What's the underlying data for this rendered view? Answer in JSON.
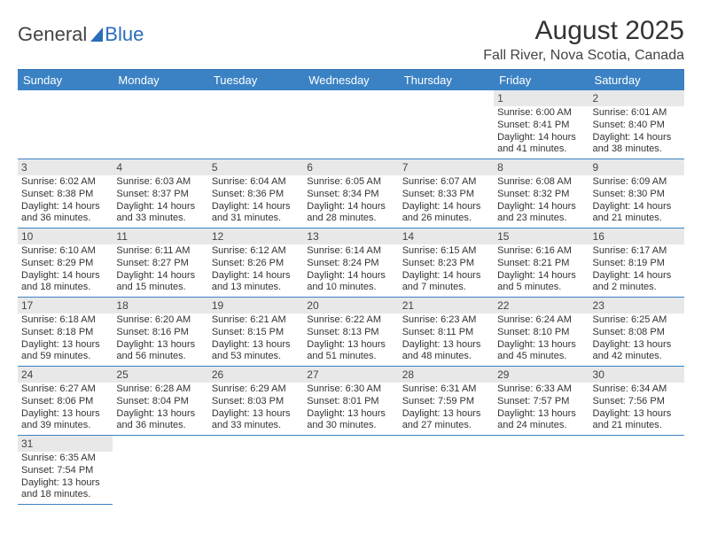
{
  "brand": {
    "general": "General",
    "blue": "Blue"
  },
  "title": "August 2025",
  "location": "Fall River, Nova Scotia, Canada",
  "header_bg": "#3b82c4",
  "header_fg": "#ffffff",
  "daynum_bg": "#e8e8e8",
  "border_color": "#3b82c4",
  "day_headers": [
    "Sunday",
    "Monday",
    "Tuesday",
    "Wednesday",
    "Thursday",
    "Friday",
    "Saturday"
  ],
  "weeks": [
    [
      null,
      null,
      null,
      null,
      null,
      {
        "n": "1",
        "sunrise": "Sunrise: 6:00 AM",
        "sunset": "Sunset: 8:41 PM",
        "d1": "Daylight: 14 hours",
        "d2": "and 41 minutes."
      },
      {
        "n": "2",
        "sunrise": "Sunrise: 6:01 AM",
        "sunset": "Sunset: 8:40 PM",
        "d1": "Daylight: 14 hours",
        "d2": "and 38 minutes."
      }
    ],
    [
      {
        "n": "3",
        "sunrise": "Sunrise: 6:02 AM",
        "sunset": "Sunset: 8:38 PM",
        "d1": "Daylight: 14 hours",
        "d2": "and 36 minutes."
      },
      {
        "n": "4",
        "sunrise": "Sunrise: 6:03 AM",
        "sunset": "Sunset: 8:37 PM",
        "d1": "Daylight: 14 hours",
        "d2": "and 33 minutes."
      },
      {
        "n": "5",
        "sunrise": "Sunrise: 6:04 AM",
        "sunset": "Sunset: 8:36 PM",
        "d1": "Daylight: 14 hours",
        "d2": "and 31 minutes."
      },
      {
        "n": "6",
        "sunrise": "Sunrise: 6:05 AM",
        "sunset": "Sunset: 8:34 PM",
        "d1": "Daylight: 14 hours",
        "d2": "and 28 minutes."
      },
      {
        "n": "7",
        "sunrise": "Sunrise: 6:07 AM",
        "sunset": "Sunset: 8:33 PM",
        "d1": "Daylight: 14 hours",
        "d2": "and 26 minutes."
      },
      {
        "n": "8",
        "sunrise": "Sunrise: 6:08 AM",
        "sunset": "Sunset: 8:32 PM",
        "d1": "Daylight: 14 hours",
        "d2": "and 23 minutes."
      },
      {
        "n": "9",
        "sunrise": "Sunrise: 6:09 AM",
        "sunset": "Sunset: 8:30 PM",
        "d1": "Daylight: 14 hours",
        "d2": "and 21 minutes."
      }
    ],
    [
      {
        "n": "10",
        "sunrise": "Sunrise: 6:10 AM",
        "sunset": "Sunset: 8:29 PM",
        "d1": "Daylight: 14 hours",
        "d2": "and 18 minutes."
      },
      {
        "n": "11",
        "sunrise": "Sunrise: 6:11 AM",
        "sunset": "Sunset: 8:27 PM",
        "d1": "Daylight: 14 hours",
        "d2": "and 15 minutes."
      },
      {
        "n": "12",
        "sunrise": "Sunrise: 6:12 AM",
        "sunset": "Sunset: 8:26 PM",
        "d1": "Daylight: 14 hours",
        "d2": "and 13 minutes."
      },
      {
        "n": "13",
        "sunrise": "Sunrise: 6:14 AM",
        "sunset": "Sunset: 8:24 PM",
        "d1": "Daylight: 14 hours",
        "d2": "and 10 minutes."
      },
      {
        "n": "14",
        "sunrise": "Sunrise: 6:15 AM",
        "sunset": "Sunset: 8:23 PM",
        "d1": "Daylight: 14 hours",
        "d2": "and 7 minutes."
      },
      {
        "n": "15",
        "sunrise": "Sunrise: 6:16 AM",
        "sunset": "Sunset: 8:21 PM",
        "d1": "Daylight: 14 hours",
        "d2": "and 5 minutes."
      },
      {
        "n": "16",
        "sunrise": "Sunrise: 6:17 AM",
        "sunset": "Sunset: 8:19 PM",
        "d1": "Daylight: 14 hours",
        "d2": "and 2 minutes."
      }
    ],
    [
      {
        "n": "17",
        "sunrise": "Sunrise: 6:18 AM",
        "sunset": "Sunset: 8:18 PM",
        "d1": "Daylight: 13 hours",
        "d2": "and 59 minutes."
      },
      {
        "n": "18",
        "sunrise": "Sunrise: 6:20 AM",
        "sunset": "Sunset: 8:16 PM",
        "d1": "Daylight: 13 hours",
        "d2": "and 56 minutes."
      },
      {
        "n": "19",
        "sunrise": "Sunrise: 6:21 AM",
        "sunset": "Sunset: 8:15 PM",
        "d1": "Daylight: 13 hours",
        "d2": "and 53 minutes."
      },
      {
        "n": "20",
        "sunrise": "Sunrise: 6:22 AM",
        "sunset": "Sunset: 8:13 PM",
        "d1": "Daylight: 13 hours",
        "d2": "and 51 minutes."
      },
      {
        "n": "21",
        "sunrise": "Sunrise: 6:23 AM",
        "sunset": "Sunset: 8:11 PM",
        "d1": "Daylight: 13 hours",
        "d2": "and 48 minutes."
      },
      {
        "n": "22",
        "sunrise": "Sunrise: 6:24 AM",
        "sunset": "Sunset: 8:10 PM",
        "d1": "Daylight: 13 hours",
        "d2": "and 45 minutes."
      },
      {
        "n": "23",
        "sunrise": "Sunrise: 6:25 AM",
        "sunset": "Sunset: 8:08 PM",
        "d1": "Daylight: 13 hours",
        "d2": "and 42 minutes."
      }
    ],
    [
      {
        "n": "24",
        "sunrise": "Sunrise: 6:27 AM",
        "sunset": "Sunset: 8:06 PM",
        "d1": "Daylight: 13 hours",
        "d2": "and 39 minutes."
      },
      {
        "n": "25",
        "sunrise": "Sunrise: 6:28 AM",
        "sunset": "Sunset: 8:04 PM",
        "d1": "Daylight: 13 hours",
        "d2": "and 36 minutes."
      },
      {
        "n": "26",
        "sunrise": "Sunrise: 6:29 AM",
        "sunset": "Sunset: 8:03 PM",
        "d1": "Daylight: 13 hours",
        "d2": "and 33 minutes."
      },
      {
        "n": "27",
        "sunrise": "Sunrise: 6:30 AM",
        "sunset": "Sunset: 8:01 PM",
        "d1": "Daylight: 13 hours",
        "d2": "and 30 minutes."
      },
      {
        "n": "28",
        "sunrise": "Sunrise: 6:31 AM",
        "sunset": "Sunset: 7:59 PM",
        "d1": "Daylight: 13 hours",
        "d2": "and 27 minutes."
      },
      {
        "n": "29",
        "sunrise": "Sunrise: 6:33 AM",
        "sunset": "Sunset: 7:57 PM",
        "d1": "Daylight: 13 hours",
        "d2": "and 24 minutes."
      },
      {
        "n": "30",
        "sunrise": "Sunrise: 6:34 AM",
        "sunset": "Sunset: 7:56 PM",
        "d1": "Daylight: 13 hours",
        "d2": "and 21 minutes."
      }
    ],
    [
      {
        "n": "31",
        "sunrise": "Sunrise: 6:35 AM",
        "sunset": "Sunset: 7:54 PM",
        "d1": "Daylight: 13 hours",
        "d2": "and 18 minutes."
      },
      null,
      null,
      null,
      null,
      null,
      null
    ]
  ]
}
